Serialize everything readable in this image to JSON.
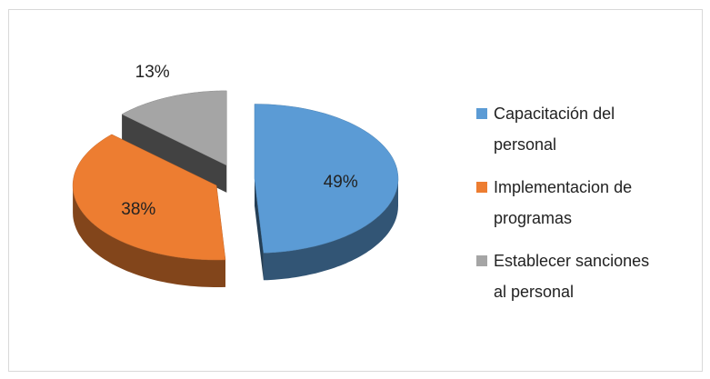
{
  "chart_data": {
    "type": "pie",
    "categories": [
      "Capacitación del personal",
      "Implementacion de programas",
      "Establecer sanciones al personal"
    ],
    "values": [
      49,
      38,
      13
    ],
    "value_labels": [
      "49%",
      "38%",
      "13%"
    ],
    "colors": [
      "#5b9bd5",
      "#ed7d31",
      "#a5a5a5"
    ],
    "legend": "right"
  }
}
